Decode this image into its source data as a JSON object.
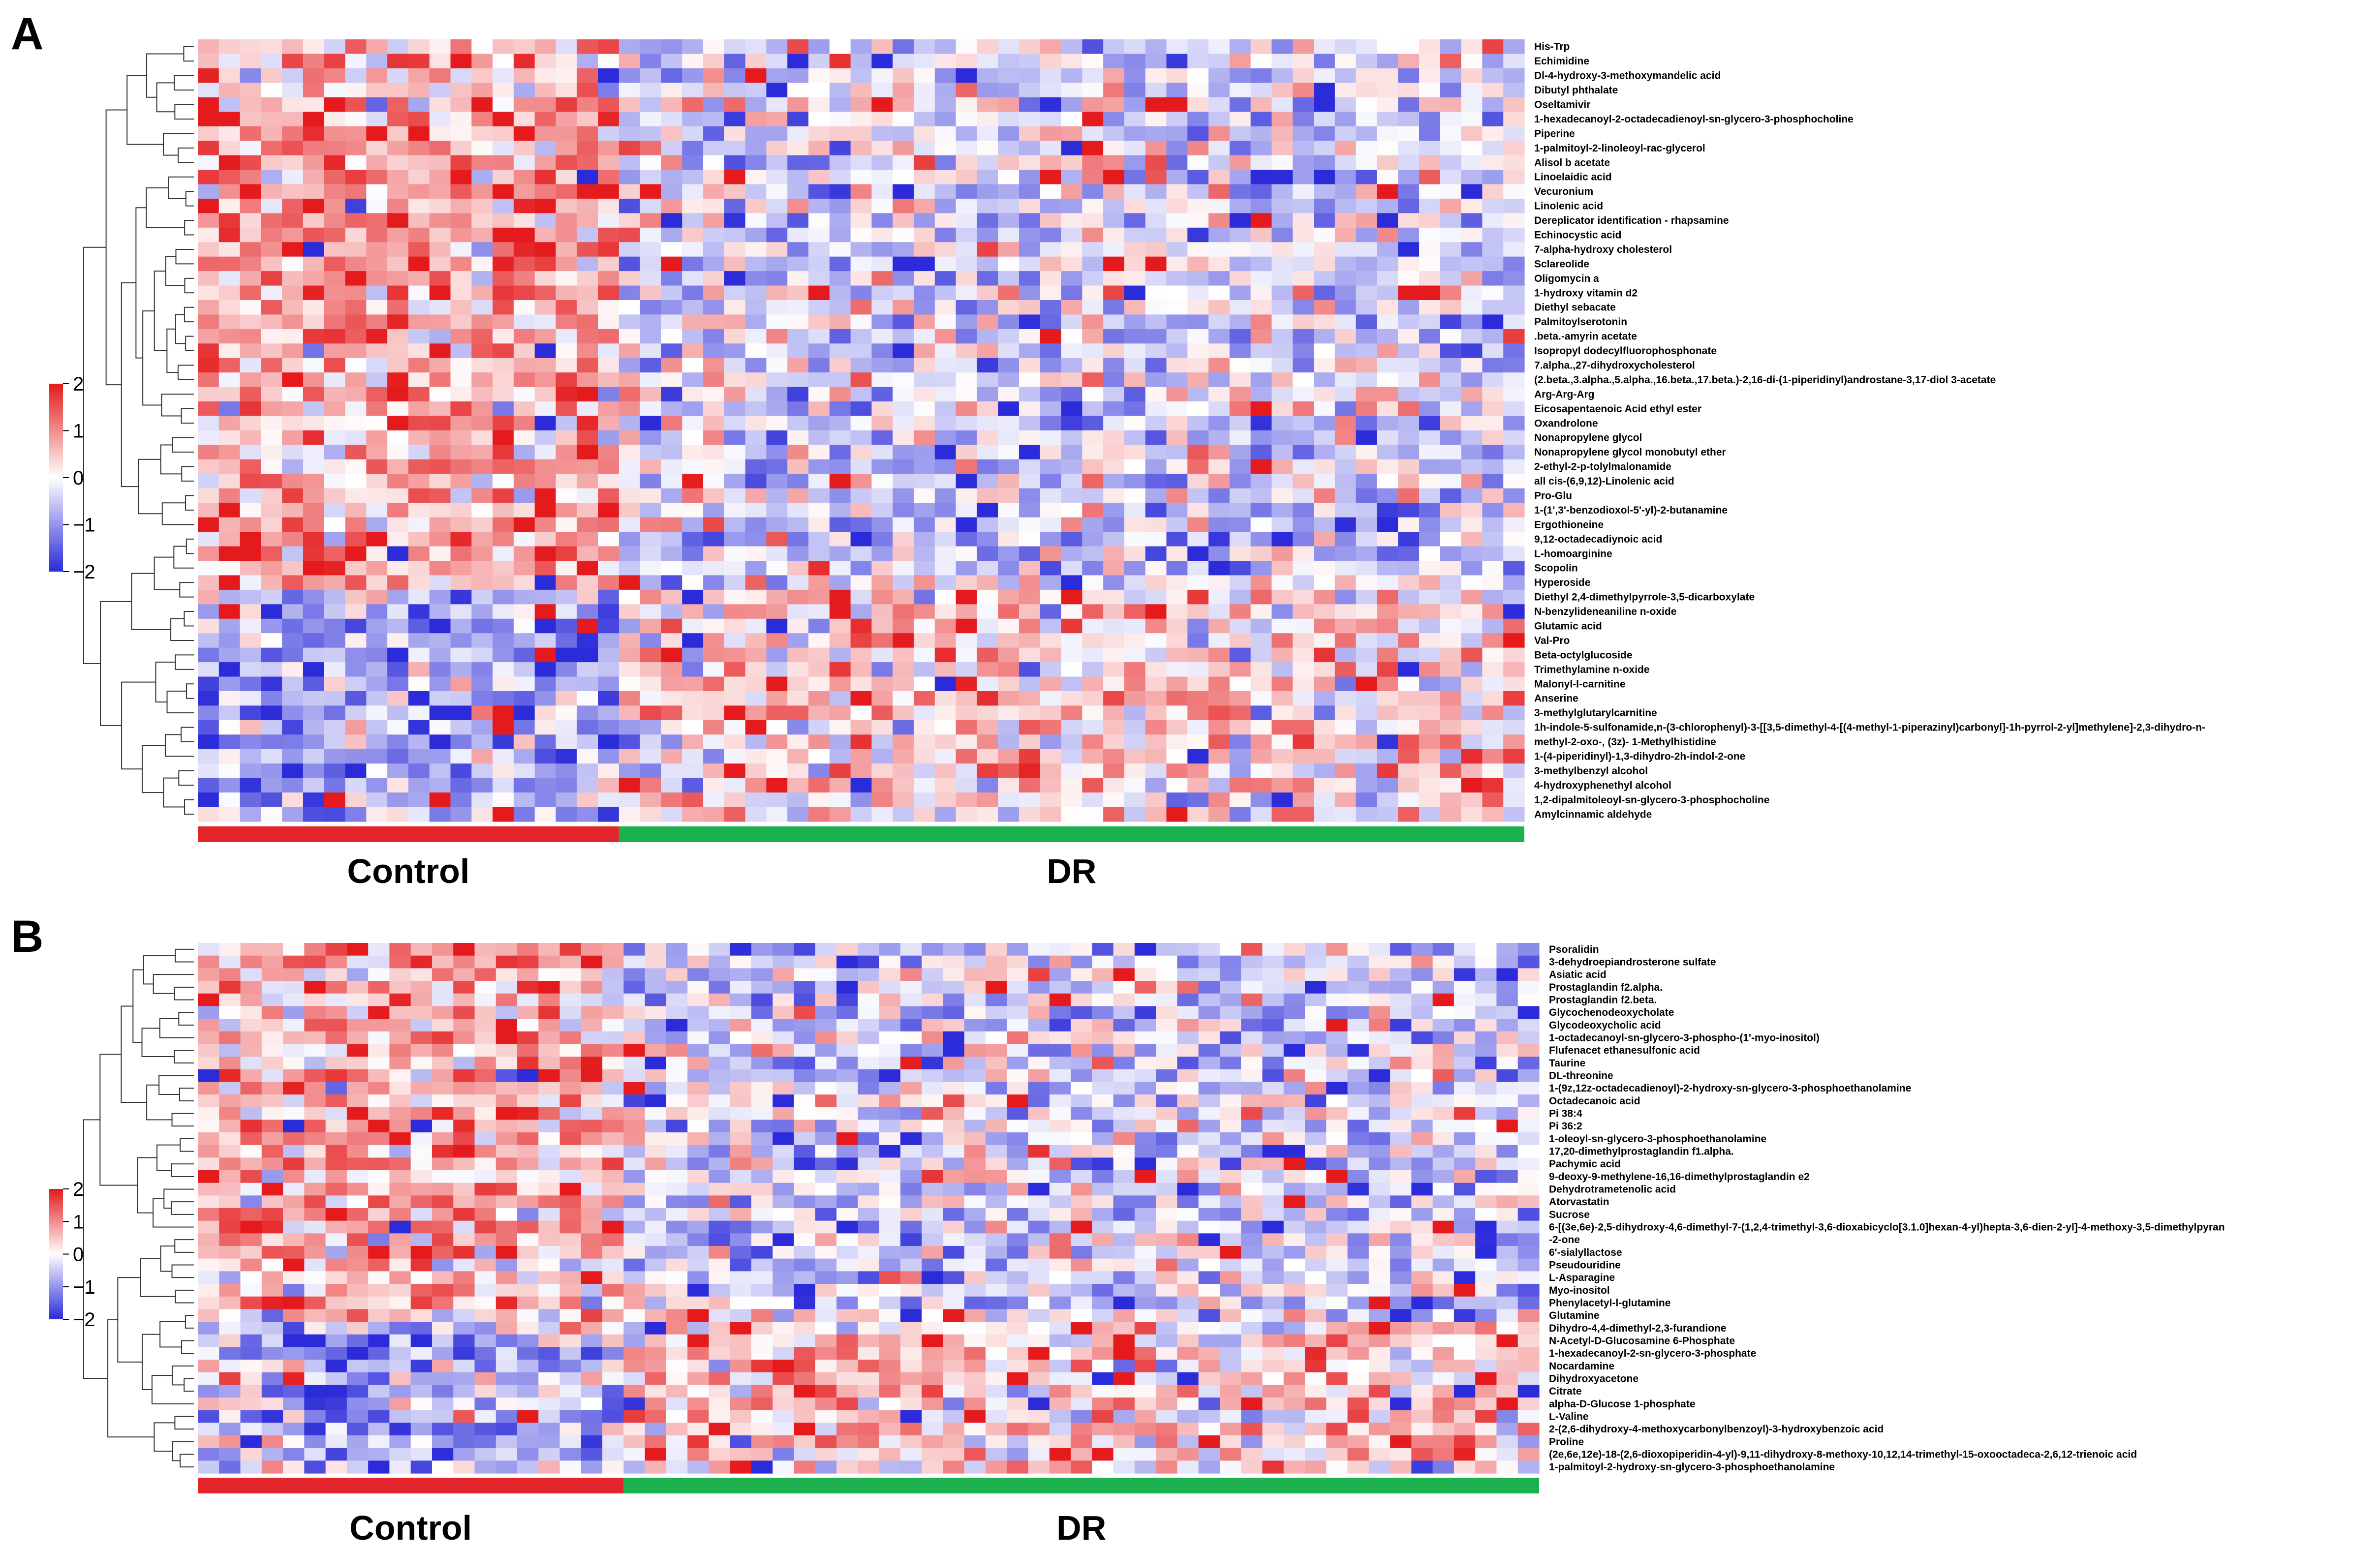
{
  "chart_data": [
    {
      "type": "heatmap",
      "panel": "A",
      "scale": {
        "min": -2,
        "max": 2,
        "ticks": [
          "2",
          "1",
          "0",
          "−1",
          "−2"
        ],
        "colors": {
          "low": "#2b2bd9",
          "mid": "#ffffff",
          "high": "#e41a1c"
        }
      },
      "groups": [
        {
          "name": "Control",
          "n_samples": 20,
          "color": "#e3242b"
        },
        {
          "name": "DR",
          "n_samples": 43,
          "color": "#1db04f"
        }
      ],
      "rows": [
        "His-Trp",
        "Echimidine",
        "Dl-4-hydroxy-3-methoxymandelic acid",
        "Dibutyl phthalate",
        "Oseltamivir",
        "1-hexadecanoyl-2-octadecadienoyl-sn-glycero-3-phosphocholine",
        "Piperine",
        "1-palmitoyl-2-linoleoyl-rac-glycerol",
        "Alisol b acetate",
        "Linoelaidic acid",
        "Vecuronium",
        "Linolenic acid",
        "Dereplicator identification - rhapsamine",
        "Echinocystic acid",
        "7-alpha-hydroxy cholesterol",
        "Sclareolide",
        "Oligomycin a",
        "1-hydroxy vitamin d2",
        "Diethyl sebacate",
        "Palmitoylserotonin",
        ".beta.-amyrin acetate",
        "Isopropyl dodecylfluorophosphonate",
        "7.alpha.,27-dihydroxycholesterol",
        "(2.beta.,3.alpha.,5.alpha.,16.beta.,17.beta.)-2,16-di-(1-piperidinyl)androstane-3,17-diol 3-acetate",
        "Arg-Arg-Arg",
        "Eicosapentaenoic Acid ethyl ester",
        "Oxandrolone",
        "Nonapropylene glycol",
        "Nonapropylene glycol monobutyl ether",
        "2-ethyl-2-p-tolylmalonamide",
        "all cis-(6,9,12)-Linolenic acid",
        "Pro-Glu",
        "1-(1',3'-benzodioxol-5'-yl)-2-butanamine",
        "Ergothioneine",
        "9,12-octadecadiynoic acid",
        "L-homoarginine",
        "Scopolin",
        "Hyperoside",
        "Diethyl 2,4-dimethylpyrrole-3,5-dicarboxylate",
        "N-benzylideneaniline n-oxide",
        "Glutamic acid",
        "Val-Pro",
        "Beta-octylglucoside",
        "Trimethylamine n-oxide",
        "Malonyl-l-carnitine",
        "Anserine",
        "3-methylglutarylcarnitine",
        "1h-indole-5-sulfonamide,n-(3-chlorophenyl)-3-[[3,5-dimethyl-4-[(4-methyl-1-piperazinyl)carbonyl]-1h-pyrrol-2-yl]methylene]-2,3-dihydro-n-",
        "methyl-2-oxo-, (3z)- 1-Methylhistidine",
        "1-(4-piperidinyl)-1,3-dihydro-2h-indol-2-one",
        "3-methylbenzyl alcohol",
        "4-hydroxyphenethyl alcohol",
        "1,2-dipalmitoleoyl-sn-glycero-3-phosphocholine",
        "Amylcinnamic aldehyde"
      ]
    },
    {
      "type": "heatmap",
      "panel": "B",
      "scale": {
        "min": -2,
        "max": 2,
        "ticks": [
          "2",
          "1",
          "0",
          "−1",
          "−2"
        ],
        "colors": {
          "low": "#2b2bd9",
          "mid": "#ffffff",
          "high": "#e41a1c"
        }
      },
      "groups": [
        {
          "name": "Control",
          "n_samples": 20,
          "color": "#e3242b"
        },
        {
          "name": "DR",
          "n_samples": 43,
          "color": "#1db04f"
        }
      ],
      "rows": [
        "Psoralidin",
        "3-dehydroepiandrosterone sulfate",
        "Asiatic acid",
        "Prostaglandin f2.alpha.",
        "Prostaglandin f2.beta.",
        "Glycochenodeoxycholate",
        "Glycodeoxycholic acid",
        "1-octadecanoyl-sn-glycero-3-phospho-(1'-myo-inositol)",
        "Flufenacet ethanesulfonic acid",
        "Taurine",
        "DL-threonine",
        "1-(9z,12z-octadecadienoyl)-2-hydroxy-sn-glycero-3-phosphoethanolamine",
        "Octadecanoic acid",
        "Pi 38:4",
        "Pi 36:2",
        "1-oleoyl-sn-glycero-3-phosphoethanolamine",
        "17,20-dimethylprostaglandin f1.alpha.",
        "Pachymic acid",
        "9-deoxy-9-methylene-16,16-dimethylprostaglandin e2",
        "Dehydrotrametenolic acid",
        "Atorvastatin",
        "Sucrose",
        "6-[(3e,6e)-2,5-dihydroxy-4,6-dimethyl-7-(1,2,4-trimethyl-3,6-dioxabicyclo[3.1.0]hexan-4-yl)hepta-3,6-dien-2-yl]-4-methoxy-3,5-dimethylpyran",
        "-2-one",
        "6'-sialyllactose",
        "Pseudouridine",
        "L-Asparagine",
        "Myo-inositol",
        "Phenylacetyl-l-glutamine",
        "Glutamine",
        "Dihydro-4,4-dimethyl-2,3-furandione",
        "N-Acetyl-D-Glucosamine 6-Phosphate",
        "1-hexadecanoyl-2-sn-glycero-3-phosphate",
        "Nocardamine",
        "Dihydroxyacetone",
        "Citrate",
        "alpha-D-Glucose 1-phosphate",
        "L-Valine",
        "2-(2,6-dihydroxy-4-methoxycarbonylbenzoyl)-3-hydroxybenzoic acid",
        "Proline",
        "(2e,6e,12e)-18-(2,6-dioxopiperidin-4-yl)-9,11-dihydroxy-8-methoxy-10,12,14-trimethyl-15-oxooctadeca-2,6,12-trienoic acid",
        "1-palmitoyl-2-hydroxy-sn-glycero-3-phosphoethanolamine"
      ]
    }
  ]
}
